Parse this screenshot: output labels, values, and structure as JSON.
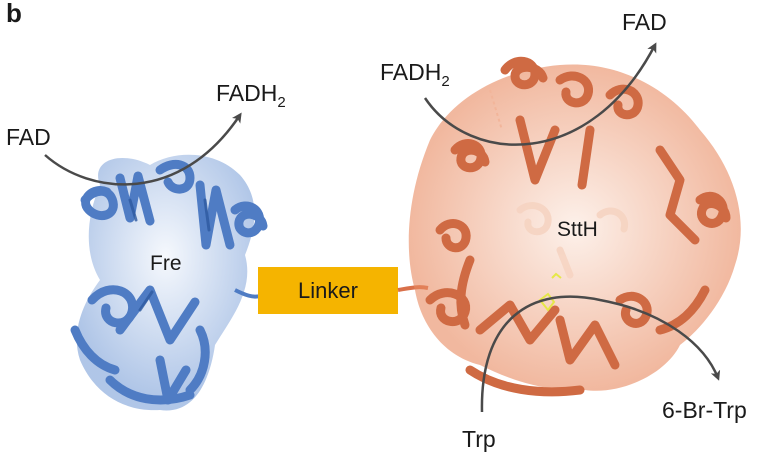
{
  "figure": {
    "panel_label": "b"
  },
  "proteins": {
    "left": {
      "name": "Fre",
      "color": "#5b86c9"
    },
    "right": {
      "name": "SttH",
      "color": "#d9704a"
    }
  },
  "linker": {
    "label": "Linker",
    "color": "#f5b400"
  },
  "reactions": {
    "left_in": "FAD",
    "left_out_base": "FADH",
    "left_out_sub": "2",
    "right_in_base": "FADH",
    "right_in_sub": "2",
    "right_out": "FAD",
    "substrate": "Trp",
    "product": "6-Br-Trp"
  },
  "arrow_color": "#4a4a4a"
}
